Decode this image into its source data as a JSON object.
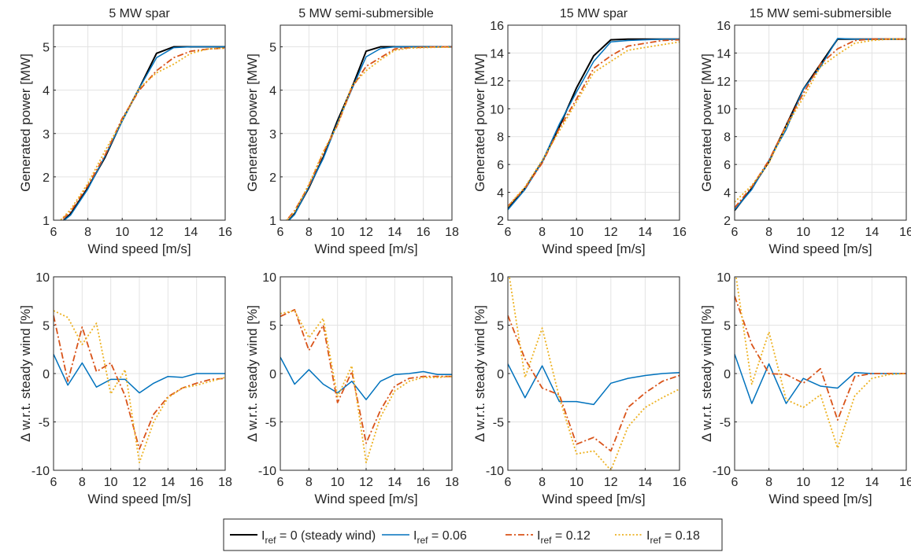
{
  "legend": {
    "entries": [
      {
        "main": "I",
        "sub": "ref",
        "rest": " = 0 (steady wind)",
        "color": "#000000",
        "dash": "solid"
      },
      {
        "main": "I",
        "sub": "ref",
        "rest": " = 0.06",
        "color": "#0072BD",
        "dash": "solid"
      },
      {
        "main": "I",
        "sub": "ref",
        "rest": " = 0.12",
        "color": "#D95319",
        "dash": "dashdot"
      },
      {
        "main": "I",
        "sub": "ref",
        "rest": " = 0.18",
        "color": "#EDB120",
        "dash": "dotted"
      }
    ]
  },
  "chart_data": [
    {
      "type": "line",
      "title": "5 MW spar",
      "xlabel": "Wind speed [m/s]",
      "ylabel": "Generated power [MW]",
      "grid": true,
      "x": [
        6,
        7,
        8,
        9,
        10,
        11,
        12,
        13,
        14,
        15,
        16
      ],
      "xlim": [
        6,
        16
      ],
      "xticks": [
        6,
        8,
        10,
        12,
        14,
        16
      ],
      "ylim": [
        1,
        5.5
      ],
      "yticks": [
        1,
        2,
        3,
        4,
        5
      ],
      "series": [
        {
          "color": "#000000",
          "dash": "solid",
          "values": [
            0.78,
            1.15,
            1.75,
            2.45,
            3.3,
            4.05,
            4.85,
            5.0,
            5.0,
            5.0,
            5.0
          ]
        },
        {
          "color": "#0072BD",
          "dash": "solid",
          "values": [
            0.8,
            1.12,
            1.72,
            2.48,
            3.28,
            4.05,
            4.75,
            4.98,
            5.0,
            5.0,
            5.0
          ]
        },
        {
          "color": "#D95319",
          "dash": "dashdot",
          "values": [
            0.85,
            1.2,
            1.8,
            2.5,
            3.35,
            4.0,
            4.45,
            4.75,
            4.9,
            4.95,
            4.97
          ]
        },
        {
          "color": "#EDB120",
          "dash": "dotted",
          "values": [
            0.83,
            1.25,
            1.85,
            2.6,
            3.3,
            4.05,
            4.4,
            4.6,
            4.85,
            4.95,
            4.97
          ]
        }
      ]
    },
    {
      "type": "line",
      "title": "5 MW semi-submersible",
      "xlabel": "Wind speed [m/s]",
      "ylabel": "Generated power [MW]",
      "grid": true,
      "x": [
        6,
        7,
        8,
        9,
        10,
        11,
        12,
        13,
        14,
        15,
        16,
        17,
        18
      ],
      "xlim": [
        6,
        18
      ],
      "xticks": [
        6,
        8,
        10,
        12,
        14,
        16,
        18
      ],
      "ylim": [
        1,
        5.5
      ],
      "yticks": [
        1,
        2,
        3,
        4,
        5
      ],
      "series": [
        {
          "color": "#000000",
          "dash": "solid",
          "values": [
            0.78,
            1.15,
            1.75,
            2.45,
            3.3,
            4.05,
            4.9,
            5.0,
            5.0,
            5.0,
            5.0,
            5.0,
            5.0
          ]
        },
        {
          "color": "#0072BD",
          "dash": "solid",
          "values": [
            0.8,
            1.13,
            1.77,
            2.42,
            3.25,
            4.02,
            4.77,
            4.96,
            5.0,
            5.0,
            5.0,
            5.0,
            5.0
          ]
        },
        {
          "color": "#D95319",
          "dash": "dashdot",
          "values": [
            0.83,
            1.22,
            1.8,
            2.55,
            3.2,
            4.05,
            4.55,
            4.75,
            4.95,
            4.98,
            4.99,
            5.0,
            5.0
          ]
        },
        {
          "color": "#EDB120",
          "dash": "dotted",
          "values": [
            0.83,
            1.2,
            1.83,
            2.58,
            3.2,
            4.1,
            4.45,
            4.7,
            4.92,
            4.97,
            4.98,
            4.99,
            4.99
          ]
        }
      ]
    },
    {
      "type": "line",
      "title": "15 MW spar",
      "xlabel": "Wind speed [m/s]",
      "ylabel": "Generated power [MW]",
      "grid": true,
      "x": [
        6,
        7,
        8,
        9,
        10,
        11,
        12,
        13,
        14,
        15,
        16
      ],
      "xlim": [
        6,
        16
      ],
      "xticks": [
        6,
        8,
        10,
        12,
        14,
        16
      ],
      "ylim": [
        2,
        16
      ],
      "yticks": [
        2,
        4,
        6,
        8,
        10,
        12,
        14,
        16
      ],
      "series": [
        {
          "color": "#000000",
          "dash": "solid",
          "values": [
            2.8,
            4.3,
            6.2,
            8.7,
            11.5,
            13.8,
            14.95,
            15.0,
            15.0,
            15.0,
            15.0
          ]
        },
        {
          "color": "#0072BD",
          "dash": "solid",
          "values": [
            2.75,
            4.2,
            6.2,
            8.9,
            11.2,
            13.4,
            14.8,
            14.9,
            14.95,
            15.0,
            15.0
          ]
        },
        {
          "color": "#D95319",
          "dash": "dashdot",
          "values": [
            3.0,
            4.3,
            6.1,
            8.6,
            10.7,
            12.9,
            13.8,
            14.5,
            14.7,
            14.9,
            14.95
          ]
        },
        {
          "color": "#EDB120",
          "dash": "dotted",
          "values": [
            3.0,
            4.4,
            6.3,
            8.4,
            10.5,
            12.6,
            13.4,
            14.2,
            14.4,
            14.6,
            14.8
          ]
        }
      ]
    },
    {
      "type": "line",
      "title": "15 MW semi-submersible",
      "xlabel": "Wind speed [m/s]",
      "ylabel": "Generated power [MW]",
      "grid": true,
      "x": [
        6,
        7,
        8,
        9,
        10,
        11,
        12,
        13,
        14,
        15,
        16
      ],
      "xlim": [
        6,
        16
      ],
      "xticks": [
        6,
        8,
        10,
        12,
        14,
        16
      ],
      "ylim": [
        2,
        16
      ],
      "yticks": [
        2,
        4,
        6,
        8,
        10,
        12,
        14,
        16
      ],
      "series": [
        {
          "color": "#000000",
          "dash": "solid",
          "values": [
            2.7,
            4.3,
            6.2,
            8.8,
            11.4,
            13.2,
            15.0,
            15.0,
            15.0,
            15.0,
            15.0
          ]
        },
        {
          "color": "#0072BD",
          "dash": "solid",
          "values": [
            2.75,
            4.2,
            6.3,
            8.5,
            11.4,
            13.0,
            15.05,
            15.0,
            15.0,
            15.0,
            15.0
          ]
        },
        {
          "color": "#D95319",
          "dash": "dashdot",
          "values": [
            2.9,
            4.4,
            6.3,
            8.8,
            11.1,
            13.2,
            14.3,
            14.9,
            15.0,
            15.0,
            15.0
          ]
        },
        {
          "color": "#EDB120",
          "dash": "dotted",
          "values": [
            3.3,
            4.5,
            6.1,
            8.7,
            10.8,
            13.0,
            13.9,
            14.7,
            14.9,
            15.0,
            15.0
          ]
        }
      ]
    },
    {
      "type": "line",
      "xlabel": "Wind speed [m/s]",
      "ylabel": "Δ w.r.t. steady wind [%]",
      "grid": true,
      "x": [
        6,
        7,
        8,
        9,
        10,
        11,
        12,
        13,
        14,
        15,
        16,
        17,
        18
      ],
      "xlim": [
        6,
        18
      ],
      "xticks": [
        6,
        8,
        10,
        12,
        14,
        16,
        18
      ],
      "ylim": [
        -10,
        10
      ],
      "yticks": [
        -10,
        -5,
        0,
        5,
        10
      ],
      "series": [
        {
          "color": "#0072BD",
          "dash": "solid",
          "values": [
            2,
            -1.2,
            1.1,
            -1.4,
            -0.6,
            -0.6,
            -2,
            -1,
            -0.3,
            -0.4,
            0,
            0,
            0
          ]
        },
        {
          "color": "#D95319",
          "dash": "dashdot",
          "values": [
            6,
            -0.8,
            4.8,
            0.2,
            1.1,
            -2.3,
            -7.8,
            -4.2,
            -2.4,
            -1.5,
            -1,
            -0.6,
            -0.5
          ]
        },
        {
          "color": "#EDB120",
          "dash": "dotted",
          "values": [
            6.5,
            5.8,
            3,
            5.2,
            -2.1,
            0.4,
            -9.2,
            -5,
            -2.5,
            -1.5,
            -1.2,
            -0.8,
            -0.4
          ]
        }
      ]
    },
    {
      "type": "line",
      "xlabel": "Wind speed [m/s]",
      "ylabel": "Δ w.r.t. steady wind [%]",
      "grid": true,
      "x": [
        6,
        7,
        8,
        9,
        10,
        11,
        12,
        13,
        14,
        15,
        16,
        17,
        18
      ],
      "xlim": [
        6,
        18
      ],
      "xticks": [
        6,
        8,
        10,
        12,
        14,
        16,
        18
      ],
      "ylim": [
        -10,
        10
      ],
      "yticks": [
        -10,
        -5,
        0,
        5,
        10
      ],
      "series": [
        {
          "color": "#0072BD",
          "dash": "solid",
          "values": [
            1.7,
            -1.1,
            0.4,
            -1.1,
            -2,
            -0.8,
            -2.7,
            -0.8,
            -0.1,
            0,
            0.2,
            -0.1,
            -0.1
          ]
        },
        {
          "color": "#D95319",
          "dash": "dashdot",
          "values": [
            5.9,
            6.6,
            2.4,
            5,
            -3,
            0.2,
            -7.2,
            -3.8,
            -1.3,
            -0.5,
            -0.3,
            -0.3,
            -0.3
          ]
        },
        {
          "color": "#EDB120",
          "dash": "dotted",
          "values": [
            6.2,
            6.5,
            3.7,
            5.7,
            -2.4,
            0.8,
            -9.2,
            -4.5,
            -1.8,
            -0.8,
            -0.4,
            -0.4,
            -0.3
          ]
        }
      ]
    },
    {
      "type": "line",
      "xlabel": "Wind speed [m/s]",
      "ylabel": "Δ w.r.t. steady wind [%]",
      "grid": true,
      "x": [
        6,
        7,
        8,
        9,
        10,
        11,
        12,
        13,
        14,
        15,
        16
      ],
      "xlim": [
        6,
        16
      ],
      "xticks": [
        6,
        8,
        10,
        12,
        14,
        16
      ],
      "ylim": [
        -10,
        10
      ],
      "yticks": [
        -10,
        -5,
        0,
        5,
        10
      ],
      "series": [
        {
          "color": "#0072BD",
          "dash": "solid",
          "values": [
            1,
            -2.5,
            0.8,
            -2.9,
            -2.9,
            -3.2,
            -1,
            -0.5,
            -0.2,
            0,
            0.1
          ]
        },
        {
          "color": "#D95319",
          "dash": "dashdot",
          "values": [
            6,
            1.5,
            -1.5,
            -2.2,
            -7.3,
            -6.6,
            -8,
            -3.5,
            -2,
            -0.8,
            -0.2
          ]
        },
        {
          "color": "#EDB120",
          "dash": "dotted",
          "values": [
            11,
            -0.4,
            4.7,
            -2.5,
            -8.3,
            -8,
            -10,
            -5.5,
            -3.5,
            -2.5,
            -1.6
          ]
        }
      ]
    },
    {
      "type": "line",
      "xlabel": "Wind speed [m/s]",
      "ylabel": "Δ w.r.t. steady wind [%]",
      "grid": true,
      "x": [
        6,
        7,
        8,
        9,
        10,
        11,
        12,
        13,
        14,
        15,
        16
      ],
      "xlim": [
        6,
        16
      ],
      "xticks": [
        6,
        8,
        10,
        12,
        14,
        16
      ],
      "ylim": [
        -10,
        10
      ],
      "yticks": [
        -10,
        -5,
        0,
        5,
        10
      ],
      "series": [
        {
          "color": "#0072BD",
          "dash": "solid",
          "values": [
            2,
            -3.1,
            1,
            -3.1,
            -0.5,
            -1.3,
            -1.5,
            0.1,
            0,
            0,
            0
          ]
        },
        {
          "color": "#D95319",
          "dash": "dashdot",
          "values": [
            8,
            3,
            0,
            -0.1,
            -1,
            0.5,
            -4.8,
            -0.3,
            0,
            0,
            0
          ]
        },
        {
          "color": "#EDB120",
          "dash": "dotted",
          "values": [
            11,
            -1.1,
            4.3,
            -2.7,
            -3.5,
            -2.2,
            -7.7,
            -2.3,
            -0.5,
            -0.1,
            0
          ]
        }
      ]
    }
  ]
}
